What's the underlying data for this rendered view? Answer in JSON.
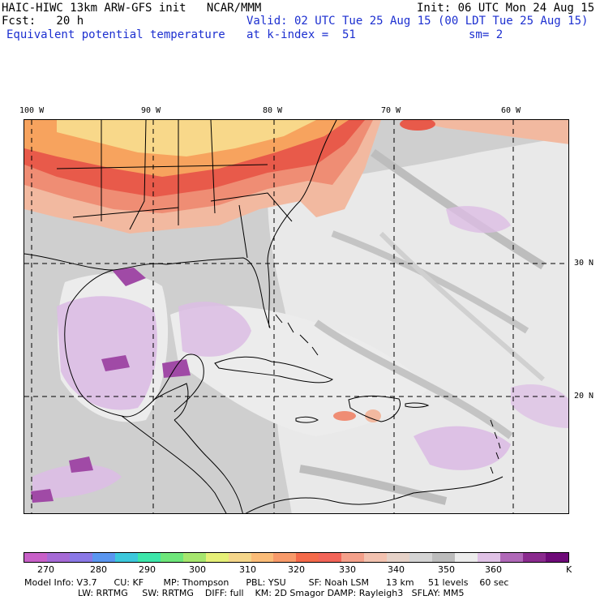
{
  "header": {
    "model_line": "HAIC-HIWC 13km ARW-GFS init   NCAR/MMM",
    "init": "Init: 06 UTC Mon 24 Aug 15",
    "fcst": "Fcst:   20 h",
    "valid": "Valid: 02 UTC Tue 25 Aug 15 (00 LDT Tue 25 Aug 15)",
    "field": "Equivalent potential temperature",
    "level": "at k-index =  51",
    "smoothing": "sm= 2"
  },
  "map": {
    "lon_labels": [
      "100 W",
      "90 W",
      "80 W",
      "70 W",
      "60 W"
    ],
    "lat_labels": [
      "30 N",
      "20 N"
    ],
    "description_regions": [
      "Gulf of Mexico",
      "Caribbean Sea",
      "Atlantic",
      "Southeastern US"
    ]
  },
  "colorbar": {
    "units": "K",
    "tick_labels": [
      "270",
      "280",
      "290",
      "300",
      "310",
      "320",
      "330",
      "340",
      "350",
      "360"
    ],
    "colors": [
      "#c860c8",
      "#a66ad6",
      "#8a78e6",
      "#5a96f0",
      "#3cc8dc",
      "#3ce6aa",
      "#6ee67a",
      "#a6e66e",
      "#e6f078",
      "#f5d68a",
      "#fbbc78",
      "#f89a6a",
      "#f46a4a",
      "#f26458",
      "#f4a08a",
      "#f3c2b0",
      "#e6d2c8",
      "#d4d4d4",
      "#bcbcbc",
      "#ececec",
      "#e0c2e6",
      "#b068b8",
      "#8a2a8e",
      "#6e0a78"
    ],
    "map_colors": {
      "gray_dark": "#bdbdbd",
      "gray_light": "#e0e0e0",
      "near_white": "#efefef",
      "lavender": "#dcbde4",
      "purple": "#a04aa6",
      "peach": "#f2b9a0",
      "salmon": "#ef8d74",
      "red": "#e85a4a",
      "orange": "#f7a35e",
      "yellow": "#f8d88a"
    }
  },
  "footer": {
    "line1": "Model Info: V3.7      CU: KF       MP: Thompson      PBL: YSU        SF: Noah LSM      13 km     51 levels    60 sec",
    "line2": "LW: RRTMG     SW: RRTMG    DIFF: full    KM: 2D Smagor DAMP: Rayleigh3   SFLAY: MM5"
  }
}
